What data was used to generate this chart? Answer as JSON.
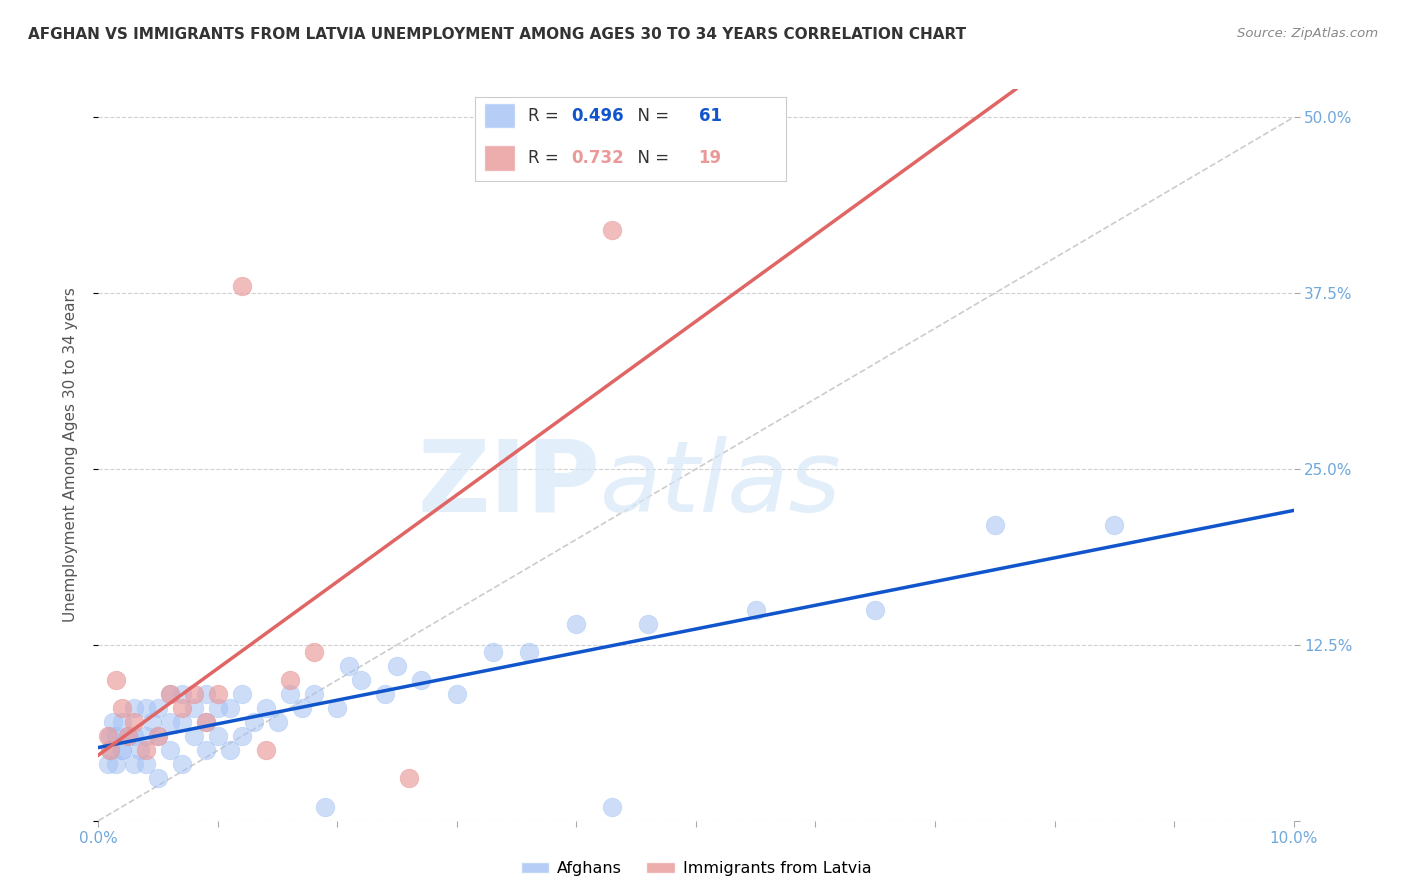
{
  "title": "AFGHAN VS IMMIGRANTS FROM LATVIA UNEMPLOYMENT AMONG AGES 30 TO 34 YEARS CORRELATION CHART",
  "source": "Source: ZipAtlas.com",
  "ylabel": "Unemployment Among Ages 30 to 34 years",
  "xlim": [
    0.0,
    0.1
  ],
  "ylim": [
    0.0,
    0.52
  ],
  "xticks": [
    0.0,
    0.01,
    0.02,
    0.03,
    0.04,
    0.05,
    0.06,
    0.07,
    0.08,
    0.09,
    0.1
  ],
  "xticklabels": [
    "0.0%",
    "",
    "",
    "",
    "",
    "",
    "",
    "",
    "",
    "",
    "10.0%"
  ],
  "yticks": [
    0.0,
    0.125,
    0.25,
    0.375,
    0.5
  ],
  "ylabels_right": [
    "",
    "12.5%",
    "25.0%",
    "37.5%",
    "50.0%"
  ],
  "afghan_R": 0.496,
  "afghan_N": 61,
  "latvia_R": 0.732,
  "latvia_N": 19,
  "afghan_color": "#a4c2f4",
  "latvia_color": "#ea9999",
  "afghan_line_color": "#1155cc",
  "latvia_line_color": "#e06666",
  "diagonal_color": "#cccccc",
  "watermark_zip": "ZIP",
  "watermark_atlas": "atlas",
  "background_color": "#ffffff",
  "grid_color": "#cccccc",
  "tick_color": "#6fa8dc",
  "title_color": "#333333",
  "afghan_x": [
    0.0008,
    0.001,
    0.001,
    0.0012,
    0.0015,
    0.0015,
    0.002,
    0.002,
    0.002,
    0.0025,
    0.003,
    0.003,
    0.003,
    0.0035,
    0.004,
    0.004,
    0.004,
    0.0045,
    0.005,
    0.005,
    0.005,
    0.006,
    0.006,
    0.006,
    0.007,
    0.007,
    0.007,
    0.008,
    0.008,
    0.009,
    0.009,
    0.009,
    0.01,
    0.01,
    0.011,
    0.011,
    0.012,
    0.012,
    0.013,
    0.014,
    0.015,
    0.016,
    0.017,
    0.018,
    0.019,
    0.02,
    0.021,
    0.022,
    0.024,
    0.025,
    0.027,
    0.03,
    0.033,
    0.036,
    0.04,
    0.043,
    0.046,
    0.055,
    0.065,
    0.075,
    0.085
  ],
  "afghan_y": [
    0.04,
    0.06,
    0.05,
    0.07,
    0.04,
    0.06,
    0.05,
    0.07,
    0.05,
    0.06,
    0.04,
    0.06,
    0.08,
    0.05,
    0.04,
    0.06,
    0.08,
    0.07,
    0.03,
    0.06,
    0.08,
    0.05,
    0.07,
    0.09,
    0.04,
    0.07,
    0.09,
    0.06,
    0.08,
    0.05,
    0.07,
    0.09,
    0.06,
    0.08,
    0.05,
    0.08,
    0.06,
    0.09,
    0.07,
    0.08,
    0.07,
    0.09,
    0.08,
    0.09,
    0.01,
    0.08,
    0.11,
    0.1,
    0.09,
    0.11,
    0.1,
    0.09,
    0.12,
    0.12,
    0.14,
    0.01,
    0.14,
    0.15,
    0.15,
    0.21,
    0.21
  ],
  "latvia_x": [
    0.0008,
    0.001,
    0.0015,
    0.002,
    0.0025,
    0.003,
    0.004,
    0.005,
    0.006,
    0.007,
    0.008,
    0.009,
    0.01,
    0.012,
    0.014,
    0.016,
    0.018,
    0.026,
    0.043
  ],
  "latvia_y": [
    0.06,
    0.05,
    0.1,
    0.08,
    0.06,
    0.07,
    0.05,
    0.06,
    0.09,
    0.08,
    0.09,
    0.07,
    0.09,
    0.38,
    0.05,
    0.1,
    0.12,
    0.03,
    0.42
  ]
}
